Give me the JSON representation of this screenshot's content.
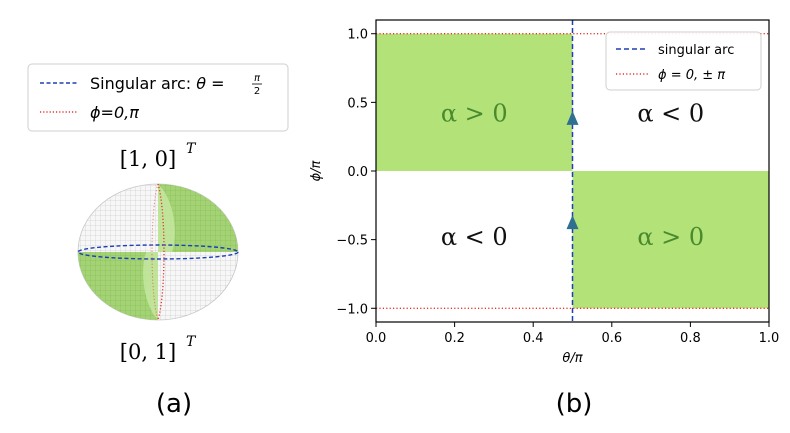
{
  "panel_a": {
    "caption": "(a)",
    "top_label": "[1, 0]",
    "bottom_label": "[0, 1]",
    "transpose": "T",
    "legend": {
      "singular_prefix": "Singular arc: ",
      "singular_theta": "θ =",
      "pi": "π",
      "two": "2",
      "phi_entry": "ϕ=0,π"
    }
  },
  "panel_b": {
    "caption": "(b)"
  },
  "colors": {
    "fill_green": "#b3e378",
    "singular_blue": "#1f3fb5",
    "phi_red": "#e8332b",
    "arrow": "#2f6f8f",
    "text_green": "#4a8a2e"
  },
  "chart_data": [
    {
      "type": "area",
      "title": "",
      "xlabel": "θ/π",
      "ylabel": "ϕ/π",
      "xlim": [
        0.0,
        1.0
      ],
      "ylim": [
        -1.1,
        1.1
      ],
      "xticks": [
        0.0,
        0.2,
        0.4,
        0.6,
        0.8,
        1.0
      ],
      "xtick_labels": [
        "0.0",
        "0.2",
        "0.4",
        "0.6",
        "0.8",
        "1.0"
      ],
      "yticks": [
        -1.0,
        -0.5,
        0.0,
        0.5,
        1.0
      ],
      "ytick_labels": [
        "−1.0",
        "−0.5",
        "0.0",
        "0.5",
        "1.0"
      ],
      "regions": [
        {
          "theta": [
            0.0,
            0.5
          ],
          "phi": [
            0.0,
            1.0
          ],
          "label": "α > 0",
          "filled": true
        },
        {
          "theta": [
            0.5,
            1.0
          ],
          "phi": [
            0.0,
            1.0
          ],
          "label": "α < 0",
          "filled": false
        },
        {
          "theta": [
            0.0,
            0.5
          ],
          "phi": [
            -1.0,
            0.0
          ],
          "label": "α < 0",
          "filled": false
        },
        {
          "theta": [
            0.5,
            1.0
          ],
          "phi": [
            -1.0,
            0.0
          ],
          "label": "α > 0",
          "filled": true
        }
      ],
      "region_label_positions": [
        [
          0.25,
          0.42
        ],
        [
          0.75,
          0.42
        ],
        [
          0.25,
          -0.48
        ],
        [
          0.75,
          -0.48
        ]
      ],
      "lines": [
        {
          "name": "singular arc",
          "style": "dashed",
          "orientation": "vertical",
          "theta": 0.5
        },
        {
          "name": "ϕ = 0, ± π",
          "style": "dotted",
          "orientation": "horizontal",
          "phi": [
            1.0,
            -1.0
          ]
        }
      ],
      "arrows": [
        {
          "theta": 0.5,
          "phi": 0.38,
          "direction": "up"
        },
        {
          "theta": 0.5,
          "phi": -0.38,
          "direction": "up"
        }
      ],
      "legend": {
        "position": "top-right",
        "entries": [
          "singular arc",
          "ϕ = 0, ± π"
        ]
      }
    }
  ]
}
